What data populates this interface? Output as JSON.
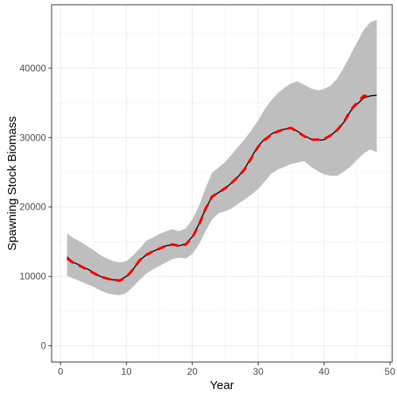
{
  "chart_data": {
    "type": "line",
    "title": "",
    "xlabel": "Year",
    "ylabel": "Spawning Stock Biomass",
    "xlim": [
      -1.35,
      50.35
    ],
    "ylim": [
      -2340,
      49140
    ],
    "x_ticks": [
      0,
      10,
      20,
      30,
      40,
      50
    ],
    "x_tick_labels": [
      "0",
      "10",
      "20",
      "30",
      "40",
      "50"
    ],
    "y_ticks": [
      0,
      10000,
      20000,
      30000,
      40000
    ],
    "y_tick_labels": [
      "0",
      "10000",
      "20000",
      "30000",
      "40000"
    ],
    "grid": true,
    "legend": "none",
    "x": [
      1,
      2,
      3,
      4,
      5,
      6,
      7,
      8,
      9,
      10,
      11,
      12,
      13,
      14,
      15,
      16,
      17,
      18,
      19,
      20,
      21,
      22,
      23,
      24,
      25,
      26,
      27,
      28,
      29,
      30,
      31,
      32,
      33,
      34,
      35,
      36,
      37,
      38,
      39,
      40,
      41,
      42,
      43,
      44,
      45,
      46,
      47,
      48
    ],
    "series": [
      {
        "role": "confidence-band",
        "color": "#bebebe",
        "lower": [
          10100,
          9700,
          9300,
          8900,
          8500,
          8000,
          7600,
          7400,
          7300,
          7600,
          8500,
          9500,
          10400,
          11000,
          11500,
          12000,
          12500,
          12700,
          12600,
          13200,
          14600,
          16500,
          18200,
          19100,
          19400,
          19800,
          20500,
          21100,
          21800,
          22600,
          23700,
          24800,
          25400,
          25800,
          26200,
          26400,
          26600,
          25800,
          25200,
          24700,
          24500,
          24500,
          25100,
          25800,
          26800,
          27700,
          28300,
          27900
        ],
        "upper": [
          16200,
          15500,
          15000,
          14400,
          13800,
          13100,
          12600,
          12200,
          12000,
          12200,
          13000,
          14000,
          15100,
          15600,
          16100,
          16500,
          16800,
          16500,
          16900,
          18200,
          20100,
          22700,
          24900,
          25700,
          26500,
          27600,
          28700,
          29800,
          31100,
          32500,
          34100,
          35400,
          36400,
          37200,
          37800,
          38100,
          37600,
          37100,
          36800,
          37000,
          37500,
          38500,
          40100,
          41900,
          43700,
          45500,
          46600,
          47000
        ]
      },
      {
        "role": "estimate",
        "color": "#000000",
        "values": [
          12800,
          12000,
          11600,
          11100,
          10600,
          10000,
          9700,
          9500,
          9500,
          10000,
          11000,
          12300,
          13100,
          13600,
          14000,
          14400,
          14600,
          14400,
          14700,
          15700,
          17500,
          19700,
          21500,
          22100,
          22700,
          23500,
          24400,
          25600,
          27200,
          28800,
          29800,
          30500,
          31000,
          31200,
          31400,
          30900,
          30300,
          29800,
          29600,
          29700,
          30300,
          31100,
          32200,
          33800,
          34800,
          35700,
          36000,
          36100
        ]
      },
      {
        "role": "reference",
        "color": "#ff0000",
        "dashed": true,
        "values": [
          12600,
          11900,
          11500,
          11000,
          10500,
          10000,
          9700,
          9500,
          9400,
          9900,
          11000,
          12300,
          13100,
          13600,
          14000,
          14400,
          14600,
          14400,
          14600,
          15600,
          17400,
          19700,
          21500,
          22100,
          22700,
          23500,
          24400,
          25500,
          27100,
          28700,
          29700,
          30400,
          30900,
          31200,
          31400,
          30800,
          30200,
          29700,
          29700,
          29800,
          30300,
          31100,
          32200,
          33900,
          35000,
          36000,
          36000,
          null
        ]
      }
    ]
  }
}
